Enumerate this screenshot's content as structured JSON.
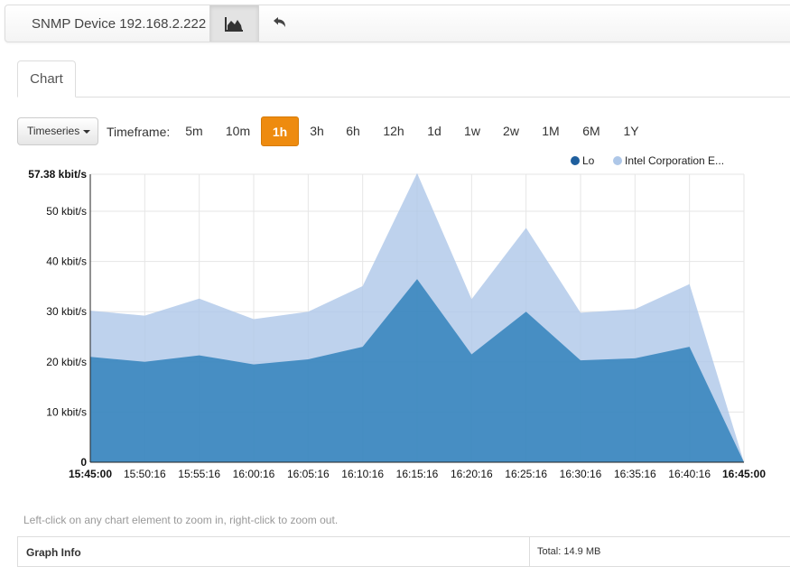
{
  "header": {
    "device_title": "SNMP Device 192.168.2.222",
    "chart_icon": "area-chart-icon",
    "back_icon": "reply-arrow-icon"
  },
  "tabs": [
    {
      "label": "Chart"
    }
  ],
  "controls": {
    "view_select": "Timeseries",
    "timeframe_label": "Timeframe:",
    "timeframes": [
      "5m",
      "10m",
      "1h",
      "3h",
      "6h",
      "12h",
      "1d",
      "1w",
      "2w",
      "1M",
      "6M",
      "1Y"
    ],
    "active_timeframe": "1h"
  },
  "chart_data": {
    "type": "area",
    "stacked": true,
    "x": [
      "15:45:00",
      "15:50:16",
      "15:55:16",
      "16:00:16",
      "16:05:16",
      "16:10:16",
      "16:15:16",
      "16:20:16",
      "16:25:16",
      "16:30:16",
      "16:35:16",
      "16:40:16",
      "16:45:00"
    ],
    "y_ticks": [
      "0",
      "10 kbit/s",
      "20 kbit/s",
      "30 kbit/s",
      "40 kbit/s",
      "50 kbit/s",
      "57.38 kbit/s"
    ],
    "y_tick_values": [
      0,
      10,
      20,
      30,
      40,
      50,
      57.38
    ],
    "ylim": [
      0,
      57.38
    ],
    "legend_position": "top-right",
    "series": [
      {
        "name": "Lo",
        "color": "#1f77b4",
        "values": [
          21,
          20,
          21.3,
          19.5,
          20.5,
          23,
          36.5,
          21.5,
          30,
          20.3,
          20.7,
          23,
          0
        ]
      },
      {
        "name": "Intel Corporation E...",
        "color": "#aec7e8",
        "values": [
          9.2,
          9.2,
          11.3,
          9,
          9.5,
          12.1,
          21.1,
          11,
          16.7,
          9.5,
          9.8,
          12.5,
          0
        ]
      }
    ],
    "grid": true
  },
  "footer": {
    "hint": "Left-click on any chart element to zoom in, right-click to zoom out.",
    "graph_info_label": "Graph Info",
    "total": "Total: 14.9 MB"
  }
}
